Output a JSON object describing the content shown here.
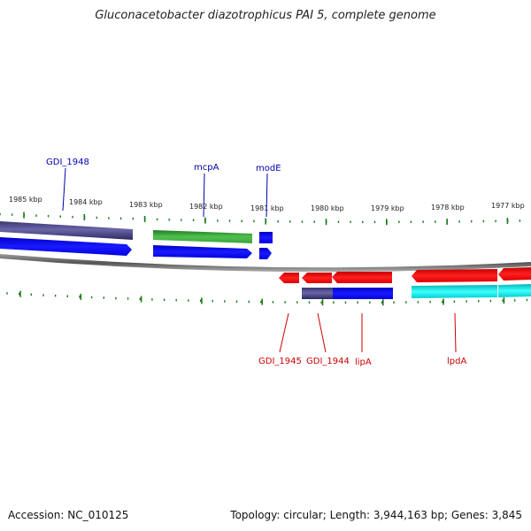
{
  "title": "Gluconacetobacter diazotrophicus PAI 5, complete genome",
  "footer": {
    "accession_label": "Accession:",
    "accession": "NC_010125",
    "topology_label": "Topology:",
    "topology": "circular",
    "length_label": "Length:",
    "length": "3,944,163 bp",
    "genes_label": "Genes:",
    "genes": "3,845"
  },
  "colors": {
    "forward_gene": "#0000ee",
    "reverse_gene": "#ee0000",
    "forward_label": "#0000aa",
    "reverse_label": "#cc0000",
    "ticks": "#1a7a1a",
    "backbone": "#777777",
    "purple_feature": "#55508f",
    "green_feature": "#2f9a2f",
    "cyan_feature": "#00e0e0"
  },
  "tick_labels": [
    "1985 kbp",
    "1984 kbp",
    "1983 kbp",
    "1982 kbp",
    "1981 kbp",
    "1980 kbp",
    "1979 kbp",
    "1978 kbp",
    "1977 kbp"
  ],
  "forward_labels": [
    "GDI_1948",
    "mcpA",
    "modE"
  ],
  "reverse_labels": [
    "GDI_1945",
    "GDI_1944",
    "lipA",
    "lpdA"
  ]
}
